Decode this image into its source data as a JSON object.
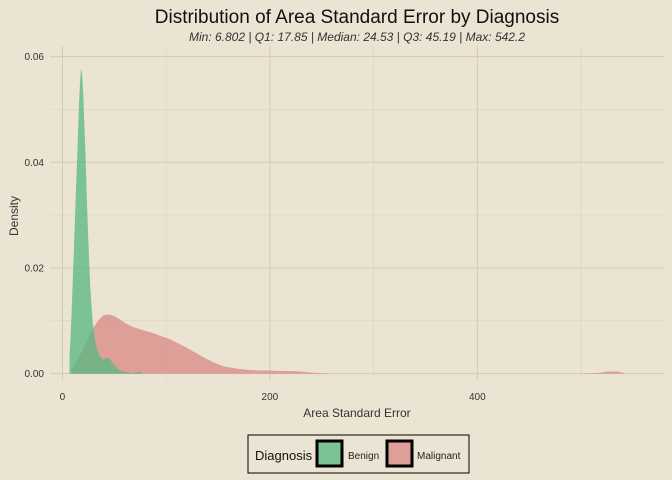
{
  "chart_data": {
    "type": "area",
    "title": "Distribution of Area Standard Error by Diagnosis",
    "subtitle": "Min: 6.802 | Q1: 17.85 | Median: 24.53 | Q3: 45.19 | Max: 542.2",
    "xlabel": "Area Standard Error",
    "ylabel": "Density",
    "xlim": [
      -12,
      580
    ],
    "ylim": [
      -0.0012,
      0.062
    ],
    "x_ticks": [
      0,
      200,
      400
    ],
    "y_ticks": [
      0.0,
      0.02,
      0.04,
      0.06
    ],
    "x_tick_labels": [
      "0",
      "200",
      "400"
    ],
    "y_tick_labels": [
      "0.00",
      "0.02",
      "0.04",
      "0.06"
    ],
    "grid": true,
    "legend": {
      "title": "Diagnosis",
      "position": "bottom"
    },
    "series": [
      {
        "name": "Benign",
        "color": "#5bb884",
        "x": [
          6.8,
          8,
          9,
          10,
          11,
          12,
          13,
          14,
          15,
          16,
          17,
          18,
          19,
          20,
          21,
          22,
          23,
          24,
          25,
          26,
          27,
          28,
          29,
          30,
          31,
          32,
          33,
          34,
          36,
          38,
          40,
          42,
          44,
          46,
          48,
          50,
          52,
          54,
          56,
          58,
          60,
          62,
          64,
          66,
          68,
          70,
          72,
          74,
          76,
          77.6
        ],
        "values": [
          0.003,
          0.0075,
          0.0125,
          0.018,
          0.0235,
          0.029,
          0.0345,
          0.04,
          0.0455,
          0.051,
          0.0555,
          0.0578,
          0.0565,
          0.053,
          0.048,
          0.0425,
          0.0365,
          0.0305,
          0.025,
          0.02,
          0.016,
          0.0128,
          0.0102,
          0.0083,
          0.0068,
          0.0057,
          0.0049,
          0.0043,
          0.0034,
          0.0028,
          0.0027,
          0.0029,
          0.003,
          0.0027,
          0.0021,
          0.0016,
          0.0011,
          0.0008,
          0.0006,
          0.0005,
          0.0004,
          0.0003,
          0.0002,
          0.0001,
          0.0001,
          0.0002,
          0.0003,
          0.0004,
          0.0002,
          0.0
        ]
      },
      {
        "name": "Malignant",
        "color": "#d98c86",
        "x": [
          8.4,
          12,
          16,
          20,
          24,
          28,
          32,
          36,
          40,
          45,
          50,
          55,
          60,
          65,
          70,
          75,
          80,
          85,
          90,
          95,
          100,
          105,
          110,
          115,
          120,
          125,
          130,
          135,
          140,
          145,
          150,
          155,
          160,
          170,
          180,
          190,
          200,
          210,
          220,
          230,
          240,
          250,
          259,
          500,
          520,
          525,
          530,
          535,
          540,
          542.2
        ],
        "values": [
          0.0008,
          0.0018,
          0.0031,
          0.0047,
          0.0064,
          0.008,
          0.0094,
          0.0104,
          0.0111,
          0.0112,
          0.0109,
          0.0103,
          0.0096,
          0.0091,
          0.0087,
          0.0084,
          0.0081,
          0.0078,
          0.0075,
          0.0071,
          0.0068,
          0.0064,
          0.0059,
          0.0054,
          0.0049,
          0.0043,
          0.0038,
          0.0032,
          0.0027,
          0.0022,
          0.0018,
          0.0014,
          0.0012,
          0.0009,
          0.0007,
          0.0006,
          0.0006,
          0.0005,
          0.0005,
          0.0004,
          0.0002,
          0.0001,
          0.0,
          0.0,
          0.0002,
          0.0004,
          0.0004,
          0.0004,
          0.0002,
          0.0
        ]
      }
    ]
  }
}
